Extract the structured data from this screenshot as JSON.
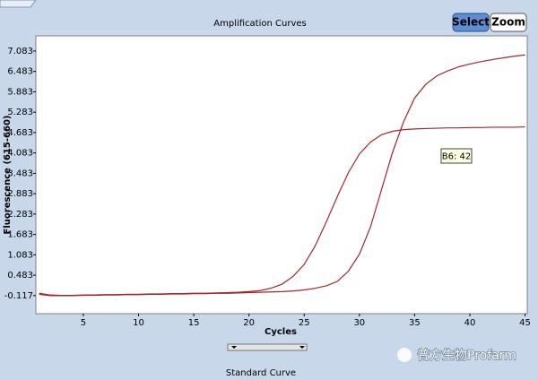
{
  "chart_data": {
    "type": "line",
    "title": "Amplification Curves",
    "x_label": "Cycles",
    "y_label": "Fluorescence (615-660)",
    "x": [
      1,
      2,
      3,
      4,
      5,
      6,
      7,
      8,
      9,
      10,
      11,
      12,
      13,
      14,
      15,
      16,
      17,
      18,
      19,
      20,
      21,
      22,
      23,
      24,
      25,
      26,
      27,
      28,
      29,
      30,
      31,
      32,
      33,
      34,
      35,
      36,
      37,
      38,
      39,
      40,
      41,
      42,
      43,
      44,
      45
    ],
    "series": [
      {
        "color": "#a3262c",
        "values": [
          -0.05,
          -0.1,
          -0.11,
          -0.11,
          -0.1,
          -0.1,
          -0.09,
          -0.09,
          -0.08,
          -0.08,
          -0.07,
          -0.07,
          -0.06,
          -0.06,
          -0.05,
          -0.05,
          -0.04,
          -0.03,
          -0.02,
          0.0,
          0.03,
          0.1,
          0.22,
          0.45,
          0.8,
          1.35,
          2.05,
          2.8,
          3.5,
          4.05,
          4.4,
          4.62,
          4.72,
          4.77,
          4.79,
          4.8,
          4.81,
          4.82,
          4.82,
          4.83,
          4.83,
          4.84,
          4.84,
          4.84,
          4.85
        ]
      },
      {
        "color": "#a3262c",
        "values": [
          -0.08,
          -0.12,
          -0.12,
          -0.12,
          -0.11,
          -0.11,
          -0.1,
          -0.1,
          -0.09,
          -0.09,
          -0.08,
          -0.08,
          -0.07,
          -0.07,
          -0.06,
          -0.06,
          -0.05,
          -0.05,
          -0.04,
          -0.03,
          -0.02,
          -0.01,
          0.0,
          0.02,
          0.05,
          0.1,
          0.17,
          0.3,
          0.6,
          1.1,
          1.9,
          3.0,
          4.1,
          5.0,
          5.7,
          6.1,
          6.35,
          6.5,
          6.62,
          6.7,
          6.77,
          6.83,
          6.88,
          6.93,
          6.97
        ]
      }
    ],
    "xlim": [
      0.7,
      45.2
    ],
    "xticks": [
      5,
      10,
      15,
      20,
      25,
      30,
      35,
      40,
      45
    ],
    "ylim": [
      -0.65,
      7.53
    ],
    "yticks": [
      -0.117,
      0.483,
      1.083,
      1.683,
      2.283,
      2.883,
      3.483,
      4.083,
      4.683,
      5.283,
      5.883,
      6.483,
      7.083
    ],
    "annotation": "B6: 42"
  },
  "ui": {
    "buttons": [
      "Select",
      "Zoom"
    ],
    "next_panel": "Standard Curve",
    "watermark": "普方生物Profarm"
  }
}
